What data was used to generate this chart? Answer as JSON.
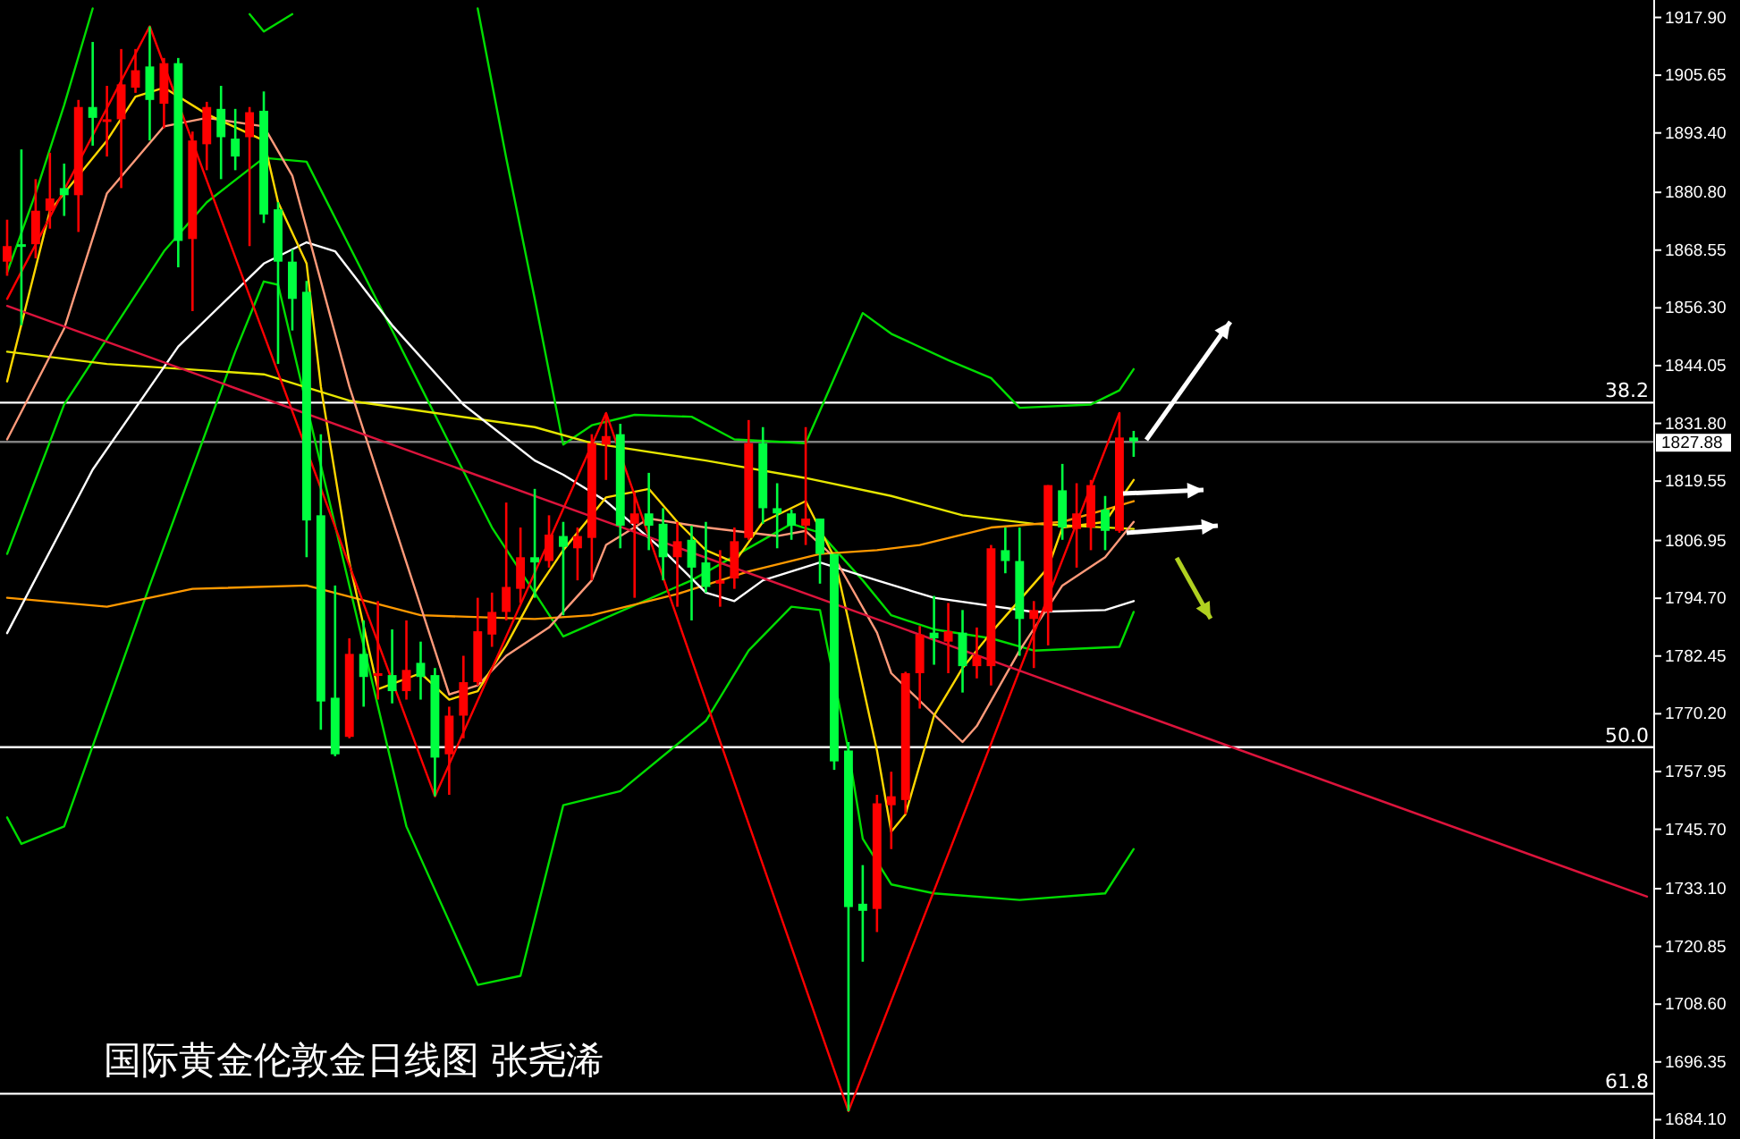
{
  "chart_data": {
    "type": "candlestick",
    "title": "国际黄金伦敦金日线图 张尧浠",
    "categories": [
      null,
      null,
      null,
      null,
      null,
      null,
      null,
      null,
      null,
      null,
      null,
      null,
      null,
      null,
      null,
      null,
      null,
      null,
      null,
      null,
      null,
      null,
      null,
      null,
      null,
      null,
      null,
      null,
      null,
      null,
      null,
      null,
      null,
      null,
      null,
      null,
      null,
      null,
      null,
      null,
      null,
      null,
      null,
      null,
      null,
      null,
      null,
      null,
      null,
      null,
      null,
      null,
      null,
      null,
      null,
      null,
      null,
      null,
      null,
      null,
      null,
      null,
      null,
      null,
      null,
      null,
      null,
      null,
      null,
      null,
      null,
      null,
      null,
      null,
      null,
      null,
      null,
      null,
      null,
      null,
      null,
      null,
      null,
      null,
      null,
      null,
      null,
      null,
      null,
      null,
      null,
      null,
      null,
      null,
      null,
      null,
      null,
      null,
      null,
      null,
      null,
      null,
      null,
      null,
      null,
      null,
      null,
      null,
      null,
      null,
      null,
      null,
      null,
      null,
      null,
      null
    ],
    "ohlc": [
      [
        1866.1,
        1875.0,
        1863.1,
        1869.4
      ],
      [
        1869.8,
        1889.9,
        1852.6,
        1869.4
      ],
      [
        1869.8,
        1883.6,
        1866.8,
        1876.9
      ],
      [
        1876.9,
        1889.2,
        1873.1,
        1879.5
      ],
      [
        1881.7,
        1886.9,
        1875.8,
        1880.2
      ],
      [
        1880.2,
        1900.4,
        1872.4,
        1898.9
      ],
      [
        1898.9,
        1912.7,
        1890.7,
        1896.6
      ],
      [
        1895.9,
        1903.4,
        1888.4,
        1896.3
      ],
      [
        1896.3,
        1911.2,
        1881.7,
        1903.7
      ],
      [
        1903.0,
        1911.2,
        1901.9,
        1906.7
      ],
      [
        1907.5,
        1916.0,
        1891.8,
        1900.4
      ],
      [
        1899.6,
        1909.3,
        1894.4,
        1908.2
      ],
      [
        1908.2,
        1909.3,
        1864.9,
        1870.5
      ],
      [
        1870.9,
        1893.7,
        1855.6,
        1891.8
      ],
      [
        1891.0,
        1900.0,
        1885.5,
        1898.9
      ],
      [
        1898.5,
        1903.4,
        1883.6,
        1892.5
      ],
      [
        1892.2,
        1898.5,
        1885.5,
        1888.4
      ],
      [
        1892.5,
        1898.9,
        1869.4,
        1897.8
      ],
      [
        1898.1,
        1902.2,
        1874.3,
        1876.1
      ],
      [
        1877.2,
        1878.7,
        1844.4,
        1866.1
      ],
      [
        1866.1,
        1868.7,
        1851.5,
        1858.2
      ],
      [
        1859.7,
        1862.0,
        1803.4,
        1811.2
      ],
      [
        1812.3,
        1829.5,
        1766.8,
        1772.8
      ],
      [
        1773.6,
        1797.4,
        1761.2,
        1761.6
      ],
      [
        1765.3,
        1786.2,
        1765.0,
        1782.9
      ],
      [
        1782.9,
        1790.0,
        1771.7,
        1778.0
      ],
      [
        1778.4,
        1794.1,
        1773.2,
        1778.8
      ],
      [
        1778.4,
        1788.1,
        1772.4,
        1775.0
      ],
      [
        1775.0,
        1790.0,
        1773.2,
        1779.5
      ],
      [
        1781.0,
        1785.5,
        1773.2,
        1778.0
      ],
      [
        1778.4,
        1779.9,
        1752.7,
        1760.9
      ],
      [
        1761.6,
        1771.7,
        1753.0,
        1769.8
      ],
      [
        1769.8,
        1782.5,
        1765.0,
        1776.9
      ],
      [
        1776.9,
        1794.8,
        1776.2,
        1787.7
      ],
      [
        1787.0,
        1795.9,
        1784.4,
        1791.8
      ],
      [
        1791.8,
        1815.0,
        1790.0,
        1797.1
      ],
      [
        1796.7,
        1809.7,
        1793.7,
        1803.4
      ],
      [
        1803.4,
        1817.9,
        1794.8,
        1802.3
      ],
      [
        1802.6,
        1812.3,
        1801.2,
        1808.2
      ],
      [
        1807.9,
        1810.9,
        1791.1,
        1805.6
      ],
      [
        1805.3,
        1809.7,
        1798.5,
        1807.9
      ],
      [
        1807.5,
        1829.5,
        1798.5,
        1827.6
      ],
      [
        1827.3,
        1834.0,
        1819.8,
        1829.1
      ],
      [
        1829.5,
        1831.7,
        1805.3,
        1810.1
      ],
      [
        1810.5,
        1817.2,
        1794.8,
        1812.7
      ],
      [
        1812.7,
        1821.3,
        1804.9,
        1810.1
      ],
      [
        1810.5,
        1813.8,
        1798.5,
        1803.4
      ],
      [
        1803.4,
        1810.9,
        1792.9,
        1806.8
      ],
      [
        1807.1,
        1810.1,
        1790.0,
        1801.2
      ],
      [
        1802.3,
        1810.9,
        1795.9,
        1797.1
      ],
      [
        1797.8,
        1804.9,
        1792.9,
        1798.5
      ],
      [
        1798.9,
        1809.7,
        1796.7,
        1806.8
      ],
      [
        1807.5,
        1832.5,
        1807.1,
        1827.6
      ],
      [
        1827.6,
        1831.0,
        1810.5,
        1813.8
      ],
      [
        1813.8,
        1819.1,
        1805.3,
        1812.7
      ],
      [
        1812.7,
        1813.5,
        1807.1,
        1810.1
      ],
      [
        1810.1,
        1831.0,
        1806.0,
        1811.6
      ],
      [
        1811.6,
        1811.6,
        1797.8,
        1804.1
      ],
      [
        1804.1,
        1804.1,
        1758.3,
        1760.1
      ],
      [
        1762.4,
        1764.2,
        1685.9,
        1729.2
      ],
      [
        1729.9,
        1738.1,
        1717.6,
        1728.4
      ],
      [
        1728.8,
        1753.0,
        1723.9,
        1751.2
      ],
      [
        1750.8,
        1757.9,
        1741.5,
        1752.7
      ],
      [
        1751.9,
        1779.1,
        1748.9,
        1778.8
      ],
      [
        1778.8,
        1788.8,
        1771.3,
        1787.0
      ],
      [
        1787.4,
        1795.2,
        1780.6,
        1786.2
      ],
      [
        1785.5,
        1793.7,
        1778.8,
        1787.7
      ],
      [
        1787.4,
        1792.2,
        1774.7,
        1780.3
      ],
      [
        1780.3,
        1788.5,
        1777.7,
        1782.5
      ],
      [
        1780.3,
        1806.0,
        1776.2,
        1805.3
      ],
      [
        1804.9,
        1809.7,
        1800.0,
        1802.6
      ],
      [
        1802.6,
        1809.7,
        1782.5,
        1790.3
      ],
      [
        1790.3,
        1794.1,
        1779.9,
        1792.2
      ],
      [
        1791.8,
        1818.7,
        1784.7,
        1818.7
      ],
      [
        1817.6,
        1823.2,
        1807.1,
        1809.7
      ],
      [
        1809.4,
        1819.1,
        1801.2,
        1812.7
      ],
      [
        1809.7,
        1819.8,
        1804.9,
        1818.7
      ],
      [
        1813.5,
        1816.4,
        1804.9,
        1809.0
      ],
      [
        1809.0,
        1834.0,
        1808.6,
        1828.8
      ],
      [
        1828.8,
        1830.2,
        1824.7,
        1828.0
      ],
      null,
      null,
      null,
      null,
      null,
      null,
      null,
      null,
      null,
      null,
      null,
      null,
      null,
      null,
      null,
      null,
      null,
      null,
      null,
      null,
      null,
      null,
      null,
      null,
      null,
      null,
      null,
      null,
      null,
      null,
      null,
      null,
      null,
      null,
      null,
      null
    ],
    "colors": [
      "#ff0000",
      "#00ff40",
      "#ff0000",
      "#ff0000",
      "#00ff40",
      "#ff0000",
      "#00ff40",
      "#ff0000",
      "#ff0000",
      "#ff0000",
      "#00ff40",
      "#ff0000",
      "#00ff40",
      "#ff0000",
      "#ff0000",
      "#00ff40",
      "#00ff40",
      "#ff0000",
      "#00ff40",
      "#00ff40",
      "#00ff40",
      "#00ff40",
      "#00ff40",
      "#00ff40",
      "#ff0000",
      "#00ff40",
      "#ff0000",
      "#00ff40",
      "#ff0000",
      "#00ff40",
      "#00ff40",
      "#ff0000",
      "#ff0000",
      "#ff0000",
      "#ff0000",
      "#ff0000",
      "#ff0000",
      "#00ff40",
      "#ff0000",
      "#00ff40",
      "#ff0000",
      "#ff0000",
      "#ff0000",
      "#00ff40",
      "#ff0000",
      "#00ff40",
      "#00ff40",
      "#ff0000",
      "#00ff40",
      "#00ff40",
      "#ff0000",
      "#ff0000",
      "#ff0000",
      "#00ff40",
      "#00ff40",
      "#00ff40",
      "#ff0000",
      "#00ff40",
      "#00ff40",
      "#00ff40",
      "#00ff40",
      "#ff0000",
      "#ff0000",
      "#ff0000",
      "#ff0000",
      "#00ff40",
      "#ff0000",
      "#00ff40",
      "#ff0000",
      "#ff0000",
      "#00ff40",
      "#00ff40",
      "#ff0000",
      "#ff0000",
      "#00ff40",
      "#ff0000",
      "#ff0000",
      "#00ff40",
      "#ff0000",
      "#00ff40",
      null,
      null,
      null,
      null,
      null,
      null,
      null,
      null,
      null,
      null,
      null,
      null,
      null,
      null,
      null,
      null,
      null,
      null,
      null,
      null,
      null,
      null,
      null,
      null,
      null,
      null,
      null,
      null,
      null,
      null,
      null,
      null,
      null,
      null,
      null,
      null
    ],
    "series": [
      {
        "type": "line",
        "color": "#00dd00",
        "values": [
          1863.8,
          null,
          1880.6,
          null,
          1899.3,
          null,
          1919.8,
          null,
          null,
          null,
          null,
          null,
          null,
          null,
          null,
          null,
          null,
          null,
          null,
          null,
          null,
          null,
          null,
          null,
          null,
          null,
          null,
          null,
          null,
          null,
          null,
          null,
          null,
          null,
          null,
          null,
          null,
          null,
          null,
          null,
          null,
          null,
          null,
          null,
          null,
          null,
          null,
          null,
          null,
          null,
          null,
          null,
          null,
          null,
          null,
          null,
          null,
          null,
          null,
          null,
          null,
          null,
          null,
          null,
          null,
          null,
          null,
          null,
          null,
          null,
          null,
          null,
          null,
          null,
          null,
          null,
          null,
          null,
          null,
          null,
          null,
          null,
          null,
          null,
          null,
          null,
          null,
          null,
          null,
          null,
          null,
          null,
          null,
          null,
          null,
          null,
          null,
          null,
          null,
          null,
          null,
          null,
          null,
          null,
          null,
          null,
          null,
          null,
          null,
          null,
          null,
          null,
          null,
          null,
          null,
          null
        ]
      },
      {
        "type": "line",
        "color": "#00dd00",
        "values": [
          null,
          null,
          null,
          null,
          null,
          null,
          null,
          null,
          null,
          null,
          null,
          null,
          null,
          null,
          null,
          null,
          null,
          1918.6,
          1914.9,
          null,
          1918.6,
          null,
          null,
          null,
          null,
          null,
          null,
          null,
          null,
          null,
          null,
          null,
          null,
          null,
          null,
          null,
          null,
          null,
          null,
          null,
          null,
          null,
          null,
          null,
          null,
          null,
          null,
          null,
          null,
          null,
          null,
          null,
          null,
          null,
          null,
          null,
          null,
          null,
          null,
          null,
          null,
          null,
          null,
          null,
          null,
          null,
          null,
          null,
          null,
          null,
          null,
          null,
          null,
          null,
          null,
          null,
          null,
          null,
          null,
          null,
          null,
          null,
          null,
          null,
          null,
          null,
          null,
          null,
          null,
          null,
          null,
          null,
          null,
          null,
          null,
          null,
          null,
          null,
          null,
          null,
          null,
          null,
          null,
          null,
          null,
          null,
          null,
          null,
          null,
          null,
          null,
          null,
          null,
          null,
          null,
          null
        ]
      },
      {
        "type": "line",
        "color": "#00dd00",
        "values": [
          null,
          null,
          null,
          null,
          null,
          null,
          null,
          null,
          null,
          null,
          null,
          null,
          null,
          null,
          null,
          null,
          null,
          null,
          null,
          null,
          null,
          null,
          null,
          null,
          null,
          null,
          null,
          null,
          null,
          null,
          null,
          null,
          null,
          1919.8,
          null,
          1888.1,
          null,
          1858.2,
          null,
          1827.3,
          null,
          1831.4,
          null,
          null,
          1833.6,
          null,
          null,
          null,
          1833.2,
          null,
          null,
          1828.4,
          null,
          null,
          null,
          null,
          1827.6,
          null,
          1841.4,
          null,
          1855.2,
          null,
          1850.8,
          null,
          null,
          null,
          1845.2,
          null,
          null,
          1841.4,
          null,
          1835.1,
          null,
          null,
          null,
          null,
          1835.8,
          null,
          1838.8,
          1843.3,
          null,
          null,
          null,
          null,
          null,
          null,
          null,
          null,
          null,
          null,
          null,
          null,
          null,
          null,
          null,
          null,
          null,
          null,
          null,
          null,
          null,
          null,
          null,
          null,
          null,
          null,
          null,
          null,
          null,
          null,
          null,
          null,
          null,
          null,
          null,
          null
        ]
      },
      {
        "type": "line",
        "color": "#00dd00",
        "values": [
          1804.1,
          null,
          null,
          null,
          1835.8,
          null,
          null,
          null,
          null,
          null,
          null,
          1868.3,
          null,
          null,
          1878.7,
          null,
          null,
          null,
          1888.1,
          null,
          null,
          1887.3,
          null,
          null,
          1869.4,
          null,
          null,
          null,
          null,
          1839.6,
          null,
          null,
          null,
          null,
          1809.7,
          null,
          null,
          null,
          null,
          1786.6,
          null,
          null,
          null,
          null,
          null,
          null,
          null,
          null,
          1798.5,
          null,
          null,
          null,
          null,
          null,
          null,
          1810.5,
          null,
          1808.6,
          null,
          null,
          1798.5,
          null,
          1791.1,
          null,
          null,
          1788.1,
          null,
          null,
          null,
          1786.2,
          null,
          null,
          1783.6,
          null,
          null,
          null,
          null,
          null,
          1784.4,
          1791.8,
          null,
          null,
          null,
          null,
          null,
          null,
          null,
          null,
          null,
          null,
          null,
          null,
          null,
          null,
          null,
          null,
          null,
          null,
          null,
          null,
          null,
          null,
          null,
          null,
          null,
          null,
          null,
          null,
          null,
          null,
          null,
          null,
          null,
          null,
          null,
          null
        ]
      },
      {
        "type": "line",
        "color": "#00dd00",
        "values": [
          1748.2,
          1742.6,
          null,
          null,
          1746.3,
          null,
          null,
          null,
          null,
          null,
          1797.4,
          null,
          null,
          null,
          null,
          null,
          1847.0,
          null,
          1861.9,
          1861.2,
          null,
          null,
          null,
          null,
          null,
          null,
          null,
          null,
          1746.3,
          null,
          null,
          null,
          null,
          1712.7,
          null,
          null,
          1714.6,
          null,
          null,
          1750.8,
          null,
          null,
          null,
          1753.8,
          null,
          null,
          null,
          null,
          null,
          1768.7,
          null,
          null,
          1783.6,
          null,
          null,
          1792.9,
          null,
          1792.2,
          null,
          1762.4,
          1743.7,
          null,
          1734.0,
          null,
          null,
          1732.1,
          null,
          null,
          null,
          null,
          null,
          1730.7,
          null,
          null,
          null,
          null,
          null,
          1732.1,
          null,
          1741.5,
          null,
          null,
          null,
          null,
          null,
          null,
          null,
          null,
          null,
          null,
          null,
          null,
          null,
          null,
          null,
          null,
          null,
          null,
          null,
          null,
          null,
          null,
          null,
          null,
          null,
          null,
          null,
          null,
          null,
          null,
          null,
          null,
          null,
          null,
          null,
          null
        ]
      },
      {
        "type": "line",
        "color": "#e6e600",
        "values": [
          1847.0,
          null,
          null,
          null,
          null,
          null,
          null,
          1844.4,
          null,
          null,
          null,
          null,
          null,
          null,
          null,
          null,
          null,
          null,
          1842.2,
          null,
          null,
          null,
          null,
          null,
          1836.6,
          null,
          null,
          null,
          null,
          null,
          null,
          null,
          null,
          null,
          null,
          null,
          null,
          1831.0,
          null,
          null,
          null,
          1827.6,
          null,
          null,
          null,
          null,
          null,
          null,
          null,
          1823.9,
          null,
          null,
          null,
          null,
          null,
          null,
          1820.2,
          null,
          null,
          null,
          null,
          null,
          1816.4,
          null,
          null,
          null,
          null,
          1812.3,
          null,
          null,
          null,
          null,
          1810.5,
          null,
          null,
          null,
          null,
          null,
          null,
          1809.4,
          null,
          null,
          null,
          null,
          null,
          null,
          null,
          null,
          null,
          null,
          null,
          null,
          null,
          null,
          null,
          null,
          null,
          null,
          null,
          null,
          null,
          null,
          null,
          null,
          null,
          null,
          null,
          null,
          null,
          null,
          null,
          null,
          null,
          null,
          null,
          null
        ]
      },
      {
        "type": "line",
        "color": "#ff9900",
        "values": [
          1794.8,
          null,
          null,
          null,
          null,
          null,
          null,
          1792.9,
          null,
          null,
          null,
          null,
          null,
          1796.7,
          null,
          null,
          null,
          null,
          null,
          null,
          null,
          1797.4,
          null,
          null,
          null,
          null,
          null,
          null,
          null,
          1791.1,
          null,
          null,
          null,
          null,
          null,
          null,
          null,
          1790.3,
          null,
          null,
          null,
          1791.1,
          null,
          null,
          null,
          null,
          null,
          1795.6,
          null,
          null,
          null,
          null,
          1800.4,
          null,
          null,
          null,
          null,
          1804.1,
          null,
          null,
          null,
          1804.9,
          null,
          null,
          1806.0,
          null,
          null,
          null,
          null,
          1809.7,
          null,
          null,
          null,
          null,
          1810.9,
          null,
          null,
          1813.5,
          null,
          1815.3,
          null,
          null,
          null,
          null,
          null,
          null,
          null,
          null,
          null,
          null,
          null,
          null,
          null,
          null,
          null,
          null,
          null,
          null,
          null,
          null,
          null,
          null,
          null,
          null,
          null,
          null,
          null,
          null,
          null,
          null,
          null,
          null,
          null,
          null,
          null,
          null
        ]
      },
      {
        "type": "line",
        "color": "#ffffff",
        "values": [
          1787.3,
          null,
          null,
          null,
          null,
          null,
          1822.0,
          null,
          null,
          null,
          null,
          null,
          1848.1,
          null,
          null,
          null,
          null,
          null,
          1865.7,
          null,
          null,
          1870.2,
          null,
          1868.3,
          null,
          null,
          null,
          1852.6,
          null,
          null,
          null,
          null,
          1835.8,
          null,
          null,
          null,
          null,
          1823.9,
          null,
          1820.9,
          null,
          null,
          1815.3,
          null,
          null,
          null,
          1804.9,
          null,
          null,
          1795.9,
          null,
          1794.1,
          null,
          1798.5,
          null,
          null,
          null,
          1802.3,
          null,
          null,
          null,
          1798.5,
          null,
          null,
          null,
          1794.8,
          null,
          null,
          null,
          null,
          null,
          null,
          1791.8,
          null,
          null,
          null,
          null,
          1792.2,
          null,
          1794.1,
          null,
          null,
          null,
          null,
          null,
          null,
          null,
          null,
          null,
          null,
          null,
          null,
          null,
          null,
          null,
          null,
          null,
          null,
          null,
          null,
          null,
          null,
          null,
          null,
          null,
          null,
          null,
          null,
          null,
          null,
          null,
          null,
          null,
          null,
          null,
          null
        ]
      },
      {
        "type": "line",
        "color": "#ff9a7a",
        "values": [
          1828.4,
          null,
          null,
          null,
          1851.9,
          null,
          null,
          1880.6,
          null,
          null,
          null,
          1894.8,
          null,
          null,
          1896.6,
          null,
          null,
          null,
          1894.8,
          null,
          1884.3,
          null,
          null,
          null,
          1839.6,
          null,
          null,
          null,
          1802.3,
          null,
          null,
          1774.3,
          null,
          1776.2,
          null,
          1782.5,
          null,
          null,
          1788.5,
          null,
          null,
          1798.5,
          1806.0,
          null,
          null,
          1811.6,
          null,
          null,
          null,
          1809.7,
          null,
          null,
          null,
          null,
          1807.9,
          null,
          1809.0,
          null,
          1803.4,
          null,
          null,
          1787.4,
          1778.8,
          null,
          null,
          null,
          null,
          1764.2,
          1767.6,
          null,
          null,
          1783.6,
          null,
          null,
          1797.4,
          null,
          null,
          1803.4,
          null,
          1810.9,
          null,
          null,
          null,
          null,
          null,
          null,
          null,
          null,
          null,
          null,
          null,
          null,
          null,
          null,
          null,
          null,
          null,
          null,
          null,
          null,
          null,
          null,
          null,
          null,
          null,
          null,
          null,
          null,
          null,
          null,
          null,
          null,
          null,
          null,
          null,
          null
        ]
      },
      {
        "type": "line",
        "color": "#ffd700",
        "values": [
          1840.7,
          null,
          null,
          1876.9,
          null,
          null,
          null,
          1891.8,
          null,
          1901.1,
          null,
          1903.0,
          null,
          null,
          1897.4,
          null,
          null,
          null,
          1891.8,
          1878.7,
          null,
          1865.7,
          1839.6,
          null,
          1802.3,
          null,
          1775.4,
          null,
          null,
          1778.8,
          null,
          1773.2,
          null,
          1775.0,
          null,
          1784.7,
          null,
          1795.9,
          null,
          1804.9,
          null,
          null,
          1816.1,
          null,
          null,
          1817.9,
          null,
          1810.9,
          null,
          1804.9,
          null,
          1802.3,
          null,
          1810.9,
          null,
          null,
          1815.3,
          null,
          1803.4,
          1790.0,
          null,
          1762.4,
          1745.2,
          1748.9,
          null,
          1769.8,
          null,
          1779.9,
          null,
          1787.4,
          null,
          null,
          null,
          1801.2,
          1809.7,
          null,
          null,
          1810.9,
          null,
          1819.8,
          null,
          null,
          null,
          null,
          null,
          null,
          null,
          null,
          null,
          null,
          null,
          null,
          null,
          null,
          null,
          null,
          null,
          null,
          null,
          null,
          null,
          null,
          null,
          null,
          null,
          null,
          null,
          null,
          null,
          null,
          null,
          null,
          null,
          null,
          null,
          null
        ]
      },
      {
        "type": "line",
        "color": "#ff0000",
        "values": [
          1858.2,
          null,
          null,
          null,
          null,
          null,
          null,
          null,
          null,
          null,
          1916.0,
          null,
          null,
          null,
          null,
          null,
          null,
          null,
          null,
          null,
          null,
          null,
          null,
          null,
          null,
          null,
          null,
          null,
          null,
          null,
          1752.7,
          null,
          null,
          null,
          null,
          null,
          null,
          null,
          null,
          null,
          null,
          null,
          1834.0,
          null,
          null,
          null,
          null,
          null,
          null,
          null,
          null,
          null,
          null,
          null,
          null,
          null,
          null,
          null,
          null,
          1685.9,
          null,
          null,
          null,
          null,
          null,
          null,
          null,
          null,
          null,
          null,
          null,
          null,
          null,
          null,
          null,
          null,
          null,
          null,
          1834.0,
          null,
          null,
          null,
          null,
          null,
          null,
          null,
          null,
          null,
          null,
          null,
          null,
          null,
          null,
          null,
          null,
          null,
          null,
          null,
          null,
          null,
          null,
          null,
          null,
          null,
          null,
          null,
          null,
          null,
          null,
          null,
          null,
          null,
          null,
          null,
          null,
          null
        ]
      },
      {
        "type": "line",
        "color": "#dc143c",
        "values": [
          1856.7,
          null,
          null,
          null,
          null,
          null,
          null,
          null,
          null,
          null,
          null,
          null,
          null,
          null,
          null,
          null,
          null,
          null,
          null,
          null,
          null,
          null,
          null,
          null,
          null,
          null,
          null,
          null,
          null,
          null,
          null,
          null,
          null,
          null,
          null,
          null,
          null,
          null,
          null,
          null,
          null,
          null,
          null,
          null,
          null,
          null,
          null,
          null,
          null,
          null,
          null,
          null,
          null,
          null,
          null,
          null,
          null,
          null,
          null,
          null,
          null,
          null,
          null,
          null,
          null,
          null,
          null,
          null,
          null,
          null,
          null,
          null,
          null,
          null,
          null,
          null,
          null,
          null,
          null,
          null,
          null,
          null,
          null,
          null,
          null,
          null,
          null,
          null,
          null,
          null,
          null,
          null,
          null,
          null,
          null,
          null,
          null,
          null,
          null,
          null,
          null,
          null,
          null,
          null,
          null,
          null,
          null,
          null,
          null,
          null,
          null,
          null,
          null,
          null,
          null,
          1731.4
        ]
      }
    ],
    "annotations": [
      {
        "text": "38.2",
        "y": 1836.2
      },
      {
        "text": "50.0",
        "y": 1763.1
      },
      {
        "text": "61.8",
        "y": 1689.6
      }
    ],
    "ref_lines": [
      {
        "axis": "y",
        "value": 1836.2
      },
      {
        "axis": "y",
        "value": 1763.1
      },
      {
        "axis": "y",
        "value": 1689.6
      },
      {
        "axis": "y",
        "value": 1827.88,
        "label": "1827.88",
        "color": "#808080"
      }
    ],
    "ylim": [
      1680,
      1921.6
    ],
    "yticks": [
      {
        "value": 1917.9,
        "label": "1917.90"
      },
      1905.65,
      {
        "value": 1893.4,
        "label": "1893.40"
      },
      {
        "value": 1880.8,
        "label": "1880.80"
      },
      1868.55,
      {
        "value": 1856.3,
        "label": "1856.30"
      },
      1844.05,
      {
        "value": 1831.8,
        "label": "1831.80"
      },
      1819.55,
      1806.95,
      {
        "value": 1794.7,
        "label": "1794.70"
      },
      1782.45,
      {
        "value": 1770.2,
        "label": "1770.20"
      },
      1757.95,
      {
        "value": 1745.7,
        "label": "1745.70"
      },
      {
        "value": 1733.1,
        "label": "1733.10"
      },
      1720.85,
      {
        "value": 1708.6,
        "label": "1708.60"
      },
      1696.35,
      {
        "value": 1684.1,
        "label": "1684.10"
      }
    ],
    "tick_labels": "y"
  }
}
